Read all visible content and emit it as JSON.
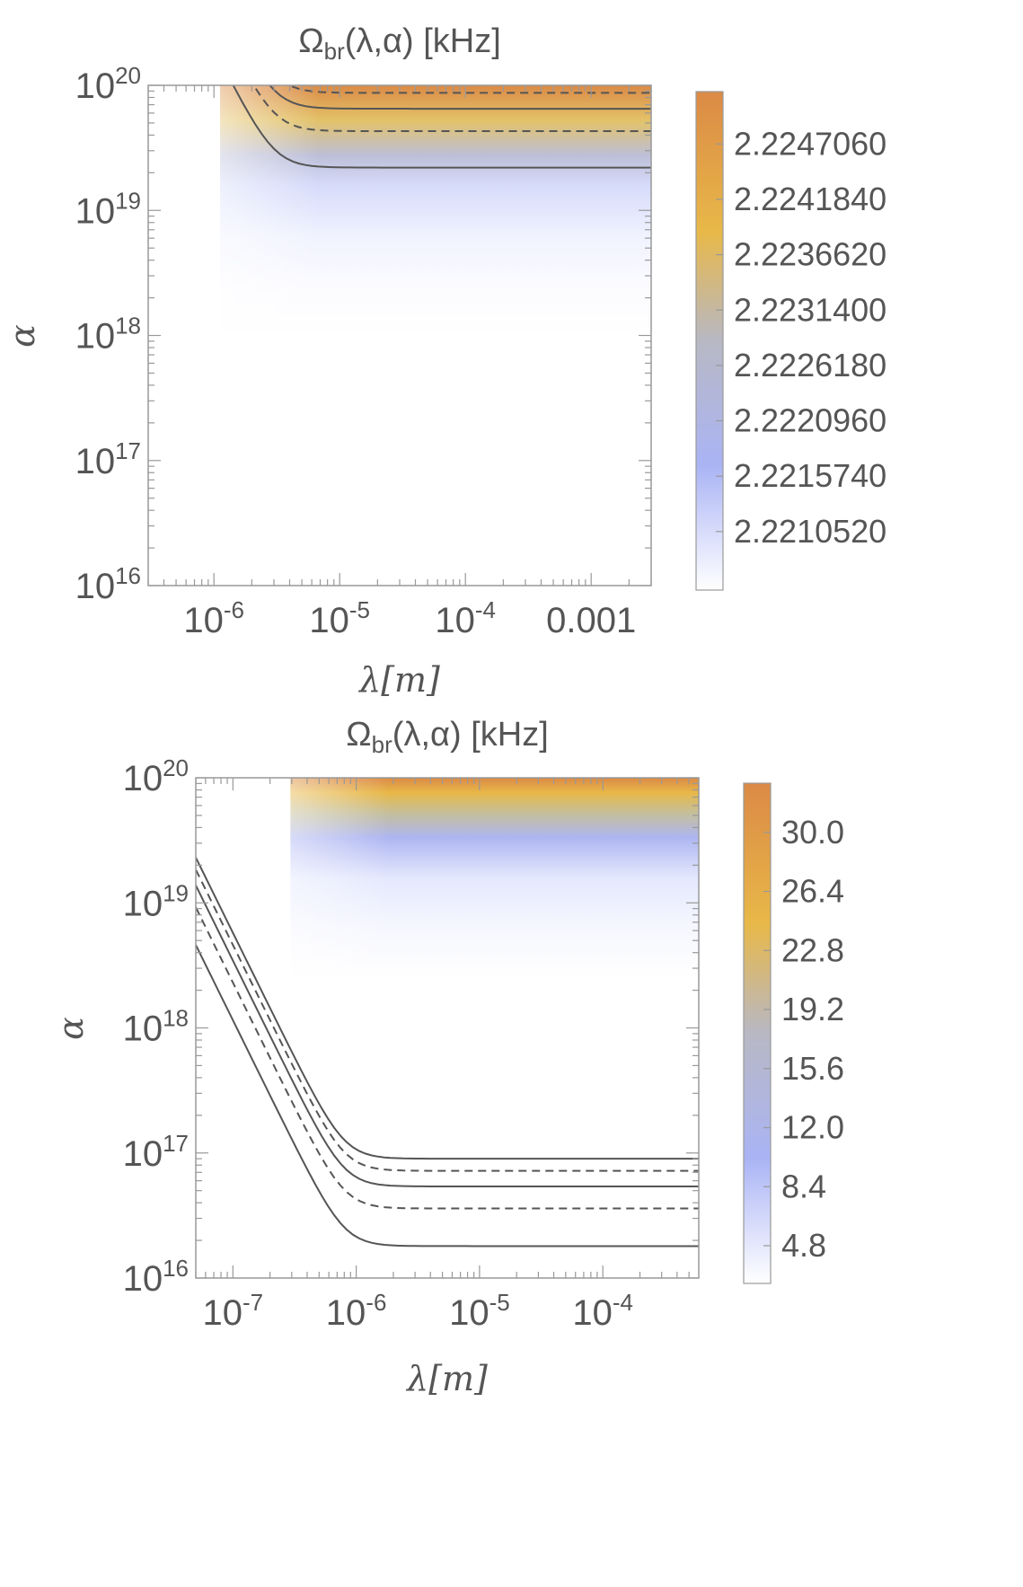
{
  "colors": {
    "low": "#ffffff",
    "blue": "#aab4f5",
    "gray": "#b8b8c4",
    "yellow": "#e8b848",
    "orange": "#db8a46",
    "contour": "#555555",
    "frame": "#999999",
    "text": "#555555"
  },
  "chart_data": [
    {
      "type": "heatmap",
      "title": "Ωbr(λ,α) [kHz]",
      "title_main": "Ω",
      "title_sub": "br",
      "title_rest": "(λ,α) [kHz]",
      "xlabel": "λ[m]",
      "ylabel": "α",
      "x_scale": "log",
      "y_scale": "log",
      "xlim": [
        3e-07,
        0.003
      ],
      "ylim": [
        1e+16,
        1e+20
      ],
      "x_ticks": [
        {
          "value": 1e-06,
          "base": "10",
          "exp": "-6"
        },
        {
          "value": 1e-05,
          "base": "10",
          "exp": "-5"
        },
        {
          "value": 0.0001,
          "base": "10",
          "exp": "-4"
        },
        {
          "value": 0.001,
          "base": "0.001",
          "exp": ""
        }
      ],
      "y_ticks": [
        {
          "value": 1e+16,
          "base": "10",
          "exp": "16"
        },
        {
          "value": 1e+17,
          "base": "10",
          "exp": "17"
        },
        {
          "value": 1e+18,
          "base": "10",
          "exp": "18"
        },
        {
          "value": 1e+19,
          "base": "10",
          "exp": "19"
        },
        {
          "value": 1e+20,
          "base": "10",
          "exp": "20"
        }
      ],
      "colorbar_ticks": [
        "2.2247060",
        "2.2241840",
        "2.2236620",
        "2.2231400",
        "2.2226180",
        "2.2220960",
        "2.2215740",
        "2.2210520"
      ],
      "colorbar_range": [
        2.2205,
        2.2252
      ],
      "knee_lambda": 3e-06,
      "contours": [
        {
          "alpha_flat": 2.2e+19,
          "style": "solid"
        },
        {
          "alpha_flat": 4.3e+19,
          "style": "dashed"
        },
        {
          "alpha_flat": 6.5e+19,
          "style": "solid"
        },
        {
          "alpha_flat": 8.7e+19,
          "style": "dashed"
        }
      ]
    },
    {
      "type": "heatmap",
      "title": "Ωbr(λ,α) [kHz]",
      "title_main": "Ω",
      "title_sub": "br",
      "title_rest": "(λ,α) [kHz]",
      "xlabel": "λ[m]",
      "ylabel": "α",
      "x_scale": "log",
      "y_scale": "log",
      "xlim": [
        5e-08,
        0.0006
      ],
      "ylim": [
        1e+16,
        1e+20
      ],
      "x_ticks": [
        {
          "value": 1e-07,
          "base": "10",
          "exp": "-7"
        },
        {
          "value": 1e-06,
          "base": "10",
          "exp": "-6"
        },
        {
          "value": 1e-05,
          "base": "10",
          "exp": "-5"
        },
        {
          "value": 0.0001,
          "base": "10",
          "exp": "-4"
        }
      ],
      "y_ticks": [
        {
          "value": 1e+16,
          "base": "10",
          "exp": "16"
        },
        {
          "value": 1e+17,
          "base": "10",
          "exp": "17"
        },
        {
          "value": 1e+18,
          "base": "10",
          "exp": "18"
        },
        {
          "value": 1e+19,
          "base": "10",
          "exp": "19"
        },
        {
          "value": 1e+20,
          "base": "10",
          "exp": "20"
        }
      ],
      "colorbar_ticks": [
        "30.0",
        "26.4",
        "22.8",
        "19.2",
        "15.6",
        "12.0",
        "8.4",
        "4.8"
      ],
      "colorbar_range": [
        2.5,
        33
      ],
      "knee_lambda": 8e-07,
      "contours": [
        {
          "alpha_flat": 1.8e+16,
          "style": "solid"
        },
        {
          "alpha_flat": 3.6e+16,
          "style": "dashed"
        },
        {
          "alpha_flat": 5.4e+16,
          "style": "solid"
        },
        {
          "alpha_flat": 7.2e+16,
          "style": "dashed"
        },
        {
          "alpha_flat": 9e+16,
          "style": "solid"
        }
      ]
    }
  ]
}
